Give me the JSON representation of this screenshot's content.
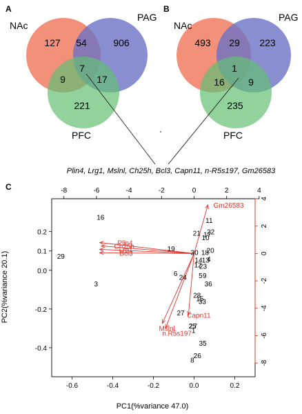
{
  "panels": {
    "a": "A",
    "b": "B",
    "c": "C"
  },
  "venn_a": {
    "set_labels": [
      "NAc",
      "PAG",
      "PFC"
    ],
    "counts": {
      "nac_only": "127",
      "nac_pag": "54",
      "pag_only": "906",
      "all_three": "7",
      "nac_pfc": "9",
      "pag_pfc": "17",
      "pfc_only": "221"
    }
  },
  "venn_b": {
    "set_labels": [
      "NAc",
      "PAG",
      "PFC"
    ],
    "counts": {
      "nac_only": "493",
      "nac_pag": "29",
      "pag_only": "223",
      "all_three": "1",
      "nac_pfc": "16",
      "pag_pfc": "9",
      "pfc_only": "235"
    }
  },
  "colors": {
    "nac": "#f07d62",
    "pag": "#6c72c4",
    "pfc": "#63bf73",
    "loading": "#e0342c"
  },
  "gene_list": "Plin4, Lrg1, Mslnl, Ch25h, Bcl3, Capn11, n-R5s197, Gm26583",
  "chart_data": {
    "type": "scatter",
    "title": "",
    "xlabel": "PC1(%variance 47.0)",
    "ylabel": "PC2(%variance 20.1)",
    "xlim": [
      -0.7,
      0.3
    ],
    "ylim": [
      -0.55,
      0.37
    ],
    "xticks": [
      -0.6,
      -0.4,
      -0.2,
      0.0,
      0.2
    ],
    "xtick_labels": [
      "-0.6",
      "-0.4",
      "-0.2",
      "0.0",
      "0.2"
    ],
    "yticks": [
      0.2,
      0.1,
      0.0,
      -0.2,
      -0.4
    ],
    "ytick_labels": [
      "0.2",
      "0.1",
      "0.0",
      "-0.2",
      "-0.4"
    ],
    "top_xlim": [
      -8.75,
      3.75
    ],
    "top_xticks": [
      -8,
      -6,
      -4,
      -2,
      0,
      2,
      4
    ],
    "top_xtick_labels": [
      "-8",
      "-6",
      "-4",
      "-2",
      "0",
      "2",
      "4"
    ],
    "right_ylim": [
      -9.0,
      4.0
    ],
    "right_yticks": [
      4,
      2,
      0,
      -2,
      -4,
      -6,
      -8
    ],
    "right_ytick_labels": [
      "4",
      "2",
      "0",
      "-2",
      "-4",
      "-6",
      "-8"
    ],
    "points": [
      {
        "label": "16",
        "x": -0.46,
        "y": 0.276
      },
      {
        "label": "29",
        "x": -0.655,
        "y": 0.074
      },
      {
        "label": "3",
        "x": -0.482,
        "y": -0.068
      },
      {
        "label": "11",
        "x": 0.074,
        "y": 0.259
      },
      {
        "label": "22",
        "x": 0.082,
        "y": 0.2
      },
      {
        "label": "21",
        "x": 0.013,
        "y": 0.193
      },
      {
        "label": "17",
        "x": 0.065,
        "y": 0.187
      },
      {
        "label": "19",
        "x": -0.113,
        "y": 0.114
      },
      {
        "label": "30",
        "x": 0.002,
        "y": 0.094
      },
      {
        "label": "10",
        "x": 0.056,
        "y": 0.171
      },
      {
        "label": "20",
        "x": 0.08,
        "y": 0.104
      },
      {
        "label": "18",
        "x": 0.054,
        "y": 0.094
      },
      {
        "label": "14",
        "x": 0.022,
        "y": 0.055
      },
      {
        "label": "13",
        "x": 0.057,
        "y": 0.055
      },
      {
        "label": "4",
        "x": 0.072,
        "y": 0.059
      },
      {
        "label": "12",
        "x": 0.019,
        "y": 0.029
      },
      {
        "label": "23",
        "x": 0.044,
        "y": 0.022
      },
      {
        "label": "6",
        "x": -0.091,
        "y": -0.016
      },
      {
        "label": "24",
        "x": -0.055,
        "y": -0.035
      },
      {
        "label": "5",
        "x": 0.032,
        "y": -0.026
      },
      {
        "label": "9",
        "x": 0.052,
        "y": -0.026
      },
      {
        "label": "36",
        "x": 0.07,
        "y": -0.068
      },
      {
        "label": "28",
        "x": 0.014,
        "y": -0.128
      },
      {
        "label": "15",
        "x": 0.028,
        "y": -0.145
      },
      {
        "label": "33",
        "x": 0.04,
        "y": -0.16
      },
      {
        "label": "27",
        "x": -0.066,
        "y": -0.218
      },
      {
        "label": "2",
        "x": -0.016,
        "y": -0.286
      },
      {
        "label": "25",
        "x": -0.008,
        "y": -0.286
      },
      {
        "label": "7",
        "x": 0.006,
        "y": -0.286
      },
      {
        "label": "1",
        "x": -0.003,
        "y": -0.31
      },
      {
        "label": "35",
        "x": 0.043,
        "y": -0.375
      },
      {
        "label": "26",
        "x": 0.016,
        "y": -0.44
      },
      {
        "label": "8",
        "x": -0.009,
        "y": -0.463
      }
    ],
    "loadings": [
      {
        "label": "Plin4",
        "x": -5.8,
        "y": 0.8
      },
      {
        "label": "Ch25h",
        "x": -5.7,
        "y": 0.55
      },
      {
        "label": "Lrg1",
        "x": -5.8,
        "y": 0.3
      },
      {
        "label": "Bcl3",
        "x": -5.8,
        "y": 0.05
      },
      {
        "label": "Gm26583",
        "x": 0.85,
        "y": 3.55
      },
      {
        "label": "Capn11",
        "x": -0.35,
        "y": -4.5
      },
      {
        "label": "Mslnl",
        "x": -1.95,
        "y": -5.1
      },
      {
        "label": "n.R5s197",
        "x": -1.75,
        "y": -5.45
      }
    ]
  }
}
